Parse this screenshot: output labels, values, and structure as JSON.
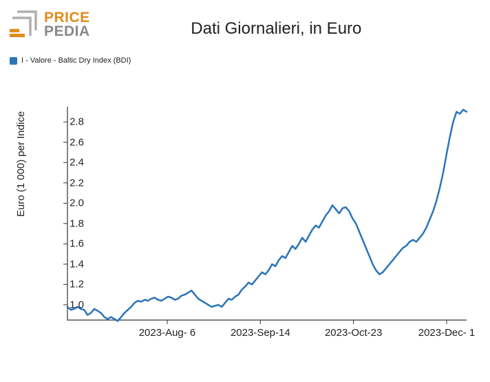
{
  "logo": {
    "top": "PRICE",
    "bottom": "PEDIA",
    "top_color": "#e28c1b",
    "bottom_color": "#888888",
    "mark_color_light": "#b0b0b0",
    "mark_color_accent": "#e28c1b"
  },
  "title": "Dati Giornalieri, in Euro",
  "legend": {
    "color": "#2a74b8",
    "label": "I - Valore - Baltic Dry Index (BDI)"
  },
  "chart": {
    "type": "line",
    "ylabel": "Euro (1 000) per Indice",
    "ylim": [
      0.85,
      2.95
    ],
    "yticks": [
      1.0,
      1.2,
      1.4,
      1.6,
      1.8,
      2.0,
      2.2,
      2.4,
      2.6,
      2.8
    ],
    "xlim": [
      0,
      120
    ],
    "xticks": [
      {
        "pos": 30,
        "label": "2023-Aug- 6"
      },
      {
        "pos": 58,
        "label": "2023-Sep-14"
      },
      {
        "pos": 86,
        "label": "2023-Oct-23"
      },
      {
        "pos": 114,
        "label": "2023-Dec- 1"
      }
    ],
    "line_color": "#2a74b8",
    "line_width": 2.5,
    "axis_color": "#333333",
    "background_color": "#ffffff",
    "tick_length": 6,
    "series": [
      0.98,
      0.95,
      0.96,
      0.98,
      0.96,
      0.95,
      0.9,
      0.92,
      0.96,
      0.94,
      0.92,
      0.88,
      0.86,
      0.88,
      0.86,
      0.84,
      0.88,
      0.92,
      0.95,
      0.98,
      1.02,
      1.04,
      1.03,
      1.05,
      1.04,
      1.06,
      1.07,
      1.05,
      1.04,
      1.06,
      1.08,
      1.07,
      1.05,
      1.06,
      1.09,
      1.1,
      1.12,
      1.14,
      1.1,
      1.06,
      1.04,
      1.02,
      1.0,
      0.98,
      0.99,
      1.0,
      0.98,
      1.02,
      1.06,
      1.05,
      1.08,
      1.1,
      1.15,
      1.18,
      1.22,
      1.2,
      1.24,
      1.28,
      1.32,
      1.3,
      1.34,
      1.4,
      1.38,
      1.44,
      1.48,
      1.46,
      1.52,
      1.58,
      1.55,
      1.6,
      1.66,
      1.62,
      1.68,
      1.74,
      1.78,
      1.76,
      1.82,
      1.88,
      1.92,
      1.98,
      1.94,
      1.9,
      1.95,
      1.96,
      1.92,
      1.85,
      1.8,
      1.72,
      1.64,
      1.56,
      1.48,
      1.4,
      1.34,
      1.3,
      1.32,
      1.36,
      1.4,
      1.44,
      1.48,
      1.52,
      1.56,
      1.58,
      1.62,
      1.64,
      1.62,
      1.66,
      1.7,
      1.76,
      1.84,
      1.92,
      2.02,
      2.15,
      2.3,
      2.48,
      2.65,
      2.8,
      2.9,
      2.88,
      2.92,
      2.9
    ]
  }
}
